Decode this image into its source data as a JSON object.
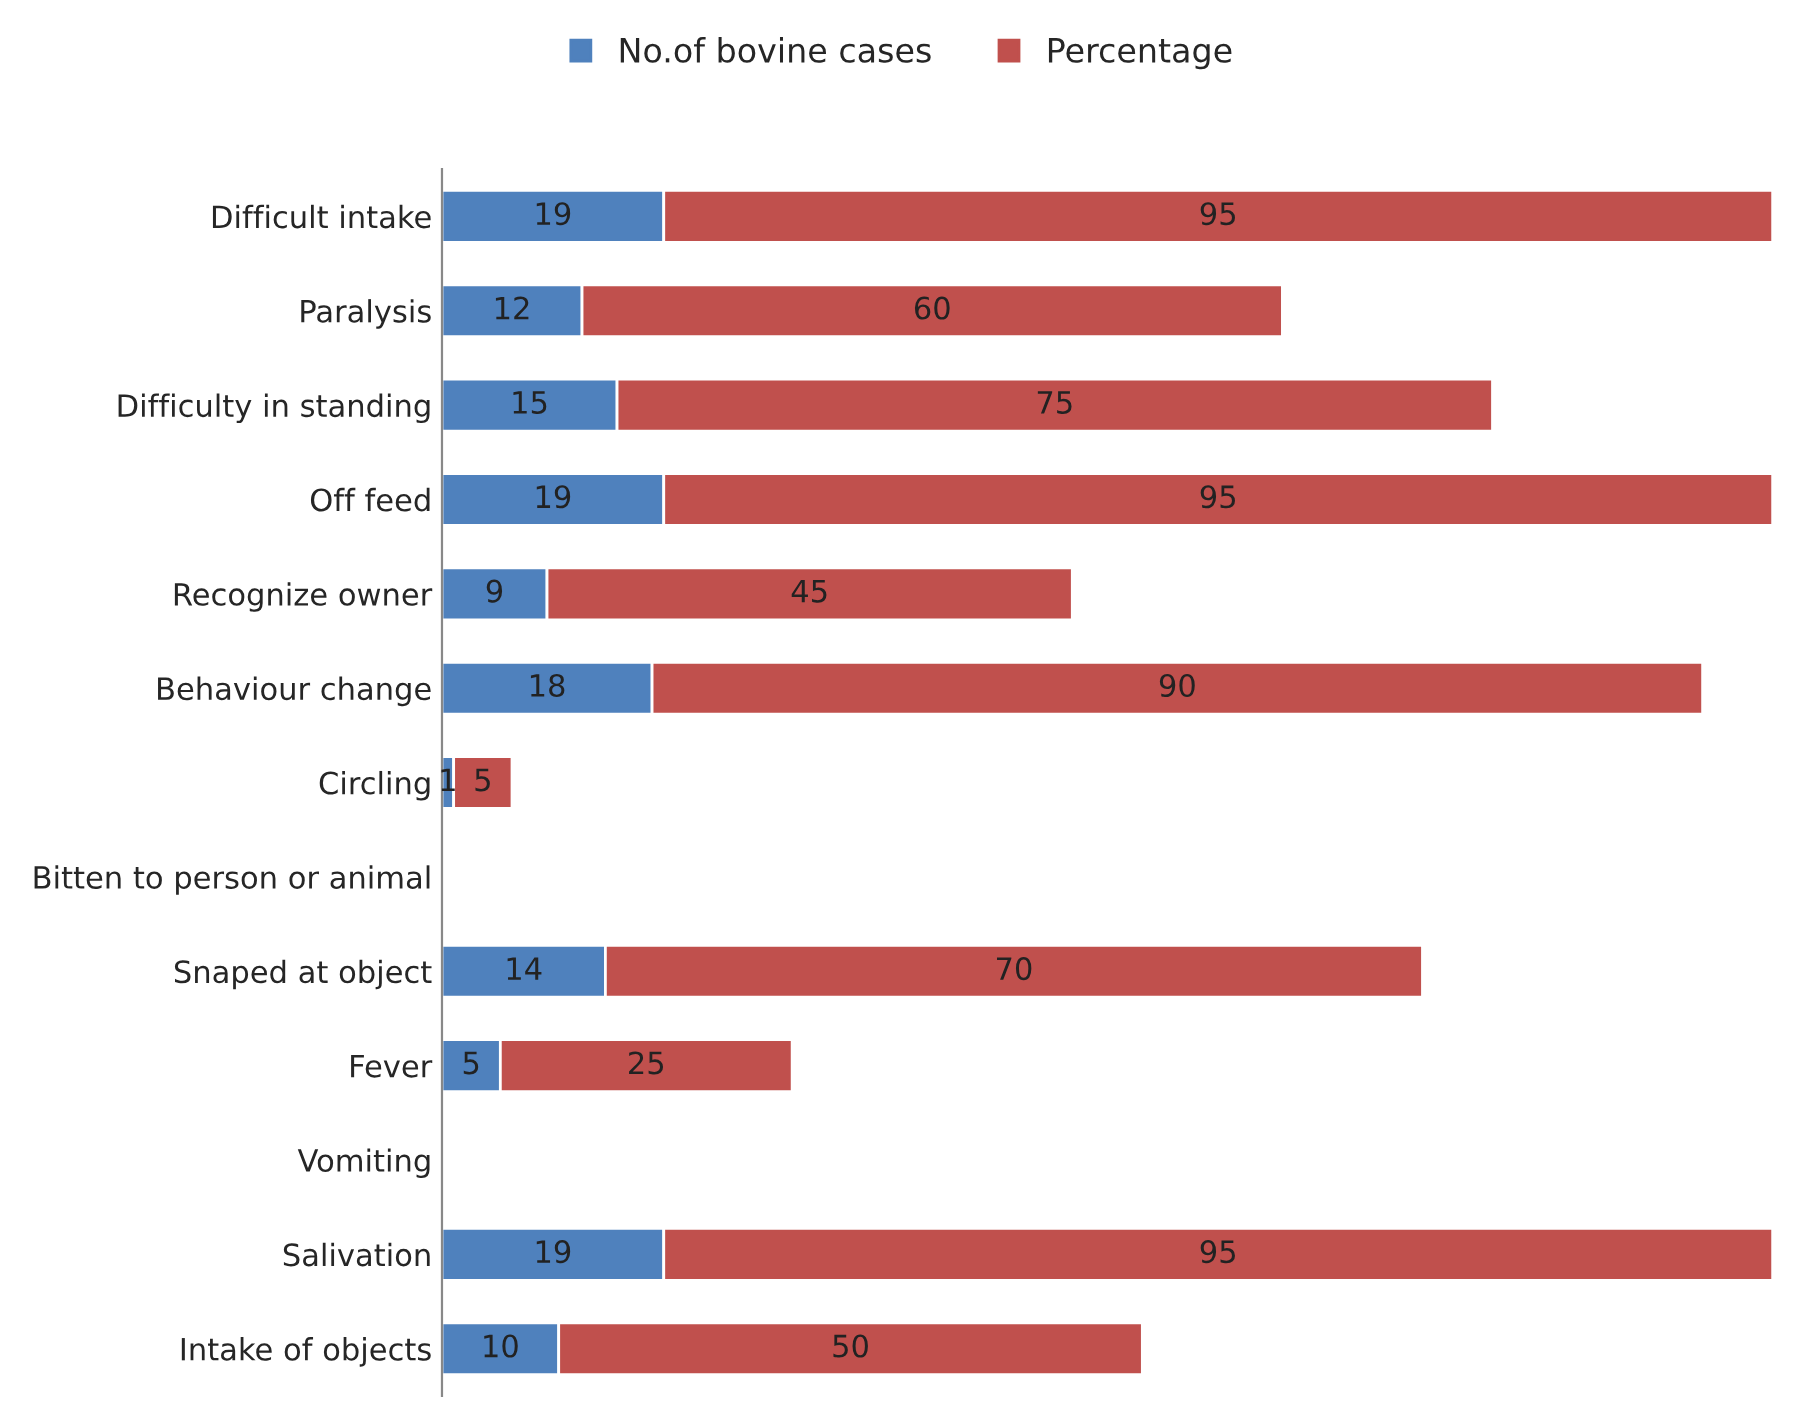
{
  "chart_data": {
    "type": "bar",
    "orientation": "horizontal",
    "stacked": true,
    "data_labels": true,
    "legend": "top",
    "grid": false,
    "categories": [
      "Difficult intake",
      "Paralysis",
      "Difficulty in standing",
      "Off feed",
      "Recognize owner",
      "Behaviour change",
      "Circling",
      "Bitten to person or animal",
      "Snaped at object",
      "Fever",
      "Vomiting",
      "Salivation",
      "Intake of objects"
    ],
    "series": [
      {
        "name": "No.of bovine cases",
        "color": "#4f81bd",
        "values": [
          19,
          12,
          15,
          19,
          9,
          18,
          1,
          null,
          14,
          5,
          null,
          19,
          10
        ]
      },
      {
        "name": "Percentage",
        "color": "#c0504d",
        "values": [
          95,
          60,
          75,
          95,
          45,
          90,
          5,
          null,
          70,
          25,
          null,
          95,
          50
        ]
      }
    ]
  }
}
